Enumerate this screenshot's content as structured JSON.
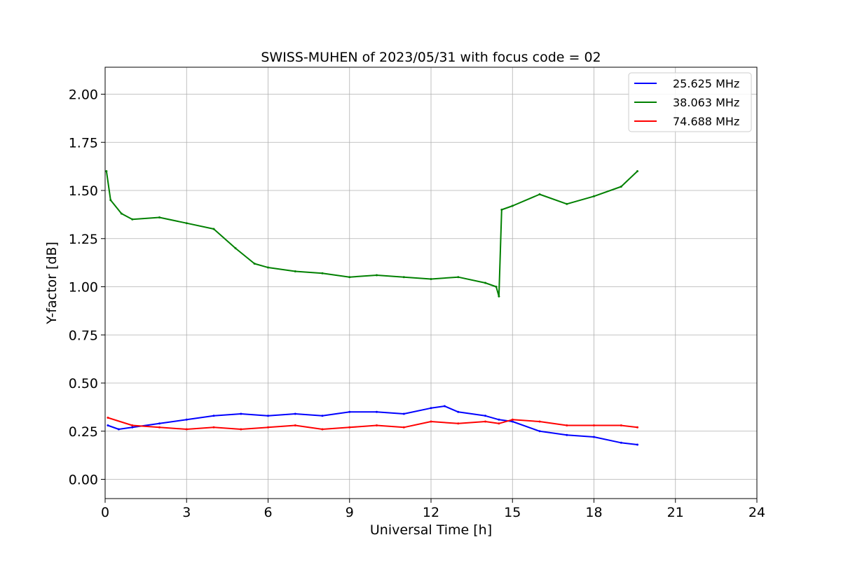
{
  "chart_data": {
    "type": "line",
    "title": "SWISS-MUHEN of 2023/05/31 with focus code = 02",
    "xlabel": "Universal Time [h]",
    "ylabel": "Y-factor [dB]",
    "xlim": [
      0,
      24
    ],
    "ylim": [
      -0.1,
      2.14
    ],
    "xticks": [
      0,
      3,
      6,
      9,
      12,
      15,
      18,
      21,
      24
    ],
    "xtick_labels": [
      "0",
      "3",
      "6",
      "9",
      "12",
      "15",
      "18",
      "21",
      "24"
    ],
    "yticks": [
      0.0,
      0.25,
      0.5,
      0.75,
      1.0,
      1.25,
      1.5,
      1.75,
      2.0
    ],
    "ytick_labels": [
      "0.00",
      "0.25",
      "0.50",
      "0.75",
      "1.00",
      "1.25",
      "1.50",
      "1.75",
      "2.00"
    ],
    "grid": true,
    "legend_position": "top-right",
    "series": [
      {
        "name": "25.625 MHz",
        "color": "#0000ff",
        "x": [
          0.1,
          0.5,
          1.0,
          2.0,
          3.0,
          4.0,
          5.0,
          6.0,
          7.0,
          8.0,
          9.0,
          10.0,
          11.0,
          12.0,
          12.5,
          13.0,
          14.0,
          14.5,
          15.0,
          16.0,
          17.0,
          18.0,
          19.0,
          19.6
        ],
        "values": [
          0.28,
          0.26,
          0.27,
          0.29,
          0.31,
          0.33,
          0.34,
          0.33,
          0.34,
          0.33,
          0.35,
          0.35,
          0.34,
          0.37,
          0.38,
          0.35,
          0.33,
          0.31,
          0.3,
          0.25,
          0.23,
          0.22,
          0.19,
          0.18
        ]
      },
      {
        "name": "38.063 MHz",
        "color": "#008000",
        "x": [
          0.05,
          0.2,
          0.6,
          1.0,
          2.0,
          3.0,
          4.0,
          4.8,
          5.5,
          6.0,
          7.0,
          8.0,
          9.0,
          10.0,
          11.0,
          12.0,
          13.0,
          14.0,
          14.4,
          14.5,
          14.6,
          15.0,
          16.0,
          17.0,
          18.0,
          19.0,
          19.6
        ],
        "values": [
          1.6,
          1.45,
          1.38,
          1.35,
          1.36,
          1.33,
          1.3,
          1.2,
          1.12,
          1.1,
          1.08,
          1.07,
          1.05,
          1.06,
          1.05,
          1.04,
          1.05,
          1.02,
          1.0,
          0.95,
          1.4,
          1.42,
          1.48,
          1.43,
          1.47,
          1.52,
          1.6
        ]
      },
      {
        "name": "74.688 MHz",
        "color": "#ff0000",
        "x": [
          0.1,
          1.0,
          2.0,
          3.0,
          4.0,
          5.0,
          6.0,
          7.0,
          8.0,
          9.0,
          10.0,
          11.0,
          12.0,
          13.0,
          14.0,
          14.5,
          15.0,
          16.0,
          17.0,
          18.0,
          19.0,
          19.6
        ],
        "values": [
          0.32,
          0.28,
          0.27,
          0.26,
          0.27,
          0.26,
          0.27,
          0.28,
          0.26,
          0.27,
          0.28,
          0.27,
          0.3,
          0.29,
          0.3,
          0.29,
          0.31,
          0.3,
          0.28,
          0.28,
          0.28,
          0.27
        ]
      }
    ]
  }
}
